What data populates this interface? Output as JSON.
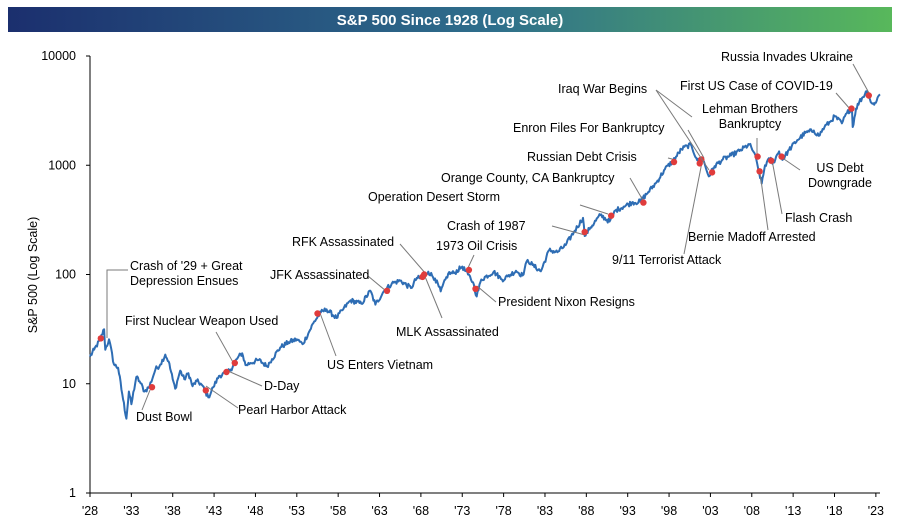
{
  "chart_data": {
    "type": "line",
    "title": "S&P 500 Since 1928 (Log Scale)",
    "ylabel": "S&P 500 (Log Scale)",
    "xlabel": "",
    "yscale": "log",
    "ylim": [
      1,
      10000
    ],
    "xlim": [
      1928,
      2023.5
    ],
    "y_ticks": [
      {
        "value": 1,
        "label": "1"
      },
      {
        "value": 10,
        "label": "10"
      },
      {
        "value": 100,
        "label": "100"
      },
      {
        "value": 1000,
        "label": "1000"
      },
      {
        "value": 10000,
        "label": "10000"
      }
    ],
    "x_ticks": [
      {
        "value": 1928,
        "label": "'28"
      },
      {
        "value": 1933,
        "label": "'33"
      },
      {
        "value": 1938,
        "label": "'38"
      },
      {
        "value": 1943,
        "label": "'43"
      },
      {
        "value": 1948,
        "label": "'48"
      },
      {
        "value": 1953,
        "label": "'53"
      },
      {
        "value": 1958,
        "label": "'58"
      },
      {
        "value": 1963,
        "label": "'63"
      },
      {
        "value": 1968,
        "label": "'68"
      },
      {
        "value": 1973,
        "label": "'73"
      },
      {
        "value": 1978,
        "label": "'78"
      },
      {
        "value": 1983,
        "label": "'83"
      },
      {
        "value": 1988,
        "label": "'88"
      },
      {
        "value": 1993,
        "label": "'93"
      },
      {
        "value": 1998,
        "label": "'98"
      },
      {
        "value": 2003,
        "label": "'03"
      },
      {
        "value": 2008,
        "label": "'08"
      },
      {
        "value": 2013,
        "label": "'13"
      },
      {
        "value": 2018,
        "label": "'18"
      },
      {
        "value": 2023,
        "label": "'23"
      }
    ],
    "series": [
      {
        "name": "S&P 500",
        "color": "#2e6db4",
        "points": [
          [
            1928.0,
            17.7
          ],
          [
            1928.5,
            20.5
          ],
          [
            1929.2,
            25
          ],
          [
            1929.7,
            31.5
          ],
          [
            1929.85,
            20.5
          ],
          [
            1930.3,
            25.5
          ],
          [
            1930.9,
            15
          ],
          [
            1931.4,
            14
          ],
          [
            1931.9,
            8
          ],
          [
            1932.4,
            4.8
          ],
          [
            1932.7,
            8.5
          ],
          [
            1933.0,
            6.5
          ],
          [
            1933.6,
            11.5
          ],
          [
            1934.0,
            10.5
          ],
          [
            1934.6,
            8.5
          ],
          [
            1935.2,
            9.5
          ],
          [
            1935.9,
            13.5
          ],
          [
            1936.5,
            15
          ],
          [
            1937.1,
            18.5
          ],
          [
            1937.5,
            16
          ],
          [
            1938.0,
            11
          ],
          [
            1938.3,
            9
          ],
          [
            1938.9,
            13.2
          ],
          [
            1939.4,
            11
          ],
          [
            1939.9,
            12.5
          ],
          [
            1940.4,
            9.5
          ],
          [
            1940.9,
            10.6
          ],
          [
            1941.5,
            9.8
          ],
          [
            1942.3,
            7.5
          ],
          [
            1942.9,
            9.3
          ],
          [
            1943.6,
            11.8
          ],
          [
            1944.4,
            12.5
          ],
          [
            1945.0,
            13.5
          ],
          [
            1945.9,
            17.5
          ],
          [
            1946.4,
            19
          ],
          [
            1946.8,
            14.8
          ],
          [
            1947.4,
            15.5
          ],
          [
            1948.4,
            16.5
          ],
          [
            1949.4,
            14.5
          ],
          [
            1950.0,
            16.8
          ],
          [
            1951.0,
            21.5
          ],
          [
            1952.0,
            24
          ],
          [
            1953.0,
            25.5
          ],
          [
            1953.7,
            23
          ],
          [
            1954.5,
            30
          ],
          [
            1955.0,
            36
          ],
          [
            1955.9,
            45
          ],
          [
            1956.6,
            48
          ],
          [
            1957.8,
            40
          ],
          [
            1958.5,
            47
          ],
          [
            1959.5,
            58
          ],
          [
            1960.8,
            54
          ],
          [
            1961.9,
            71
          ],
          [
            1962.5,
            53
          ],
          [
            1963.5,
            70
          ],
          [
            1964.5,
            83
          ],
          [
            1965.5,
            88
          ],
          [
            1966.8,
            75
          ],
          [
            1967.5,
            93
          ],
          [
            1968.0,
            92
          ],
          [
            1968.9,
            106
          ],
          [
            1969.7,
            92
          ],
          [
            1970.4,
            70
          ],
          [
            1971.3,
            102
          ],
          [
            1972.0,
            103
          ],
          [
            1973.0,
            118
          ],
          [
            1973.7,
            100
          ],
          [
            1974.3,
            85
          ],
          [
            1974.75,
            63
          ],
          [
            1975.3,
            90
          ],
          [
            1976.8,
            106
          ],
          [
            1977.8,
            90
          ],
          [
            1978.5,
            96
          ],
          [
            1979.5,
            108
          ],
          [
            1980.3,
            98
          ],
          [
            1980.9,
            136
          ],
          [
            1981.5,
            122
          ],
          [
            1982.5,
            107
          ],
          [
            1983.5,
            167
          ],
          [
            1984.5,
            160
          ],
          [
            1985.5,
            186
          ],
          [
            1986.5,
            245
          ],
          [
            1987.6,
            330
          ],
          [
            1987.8,
            225
          ],
          [
            1988.5,
            270
          ],
          [
            1989.7,
            350
          ],
          [
            1990.8,
            305
          ],
          [
            1991.5,
            385
          ],
          [
            1992.5,
            418
          ],
          [
            1993.5,
            455
          ],
          [
            1994.5,
            465
          ],
          [
            1995.5,
            570
          ],
          [
            1996.5,
            700
          ],
          [
            1997.5,
            920
          ],
          [
            1998.5,
            1100
          ],
          [
            1999.5,
            1400
          ],
          [
            2000.2,
            1500
          ],
          [
            2000.7,
            1520
          ],
          [
            2001.3,
            1160
          ],
          [
            2001.7,
            1040
          ],
          [
            2002.1,
            1130
          ],
          [
            2002.8,
            790
          ],
          [
            2003.5,
            980
          ],
          [
            2004.5,
            1130
          ],
          [
            2005.5,
            1230
          ],
          [
            2006.5,
            1350
          ],
          [
            2007.7,
            1550
          ],
          [
            2008.3,
            1300
          ],
          [
            2008.9,
            850
          ],
          [
            2009.2,
            680
          ],
          [
            2009.6,
            1000
          ],
          [
            2010.3,
            1170
          ],
          [
            2010.5,
            1030
          ],
          [
            2011.3,
            1340
          ],
          [
            2011.7,
            1120
          ],
          [
            2012.5,
            1380
          ],
          [
            2013.5,
            1700
          ],
          [
            2014.5,
            1980
          ],
          [
            2015.5,
            2080
          ],
          [
            2016.1,
            1860
          ],
          [
            2016.8,
            2250
          ],
          [
            2017.5,
            2500
          ],
          [
            2018.0,
            2800
          ],
          [
            2018.9,
            2420
          ],
          [
            2019.5,
            3000
          ],
          [
            2020.1,
            3380
          ],
          [
            2020.2,
            2240
          ],
          [
            2020.6,
            3300
          ],
          [
            2021.0,
            3800
          ],
          [
            2021.9,
            4760
          ],
          [
            2022.5,
            3700
          ],
          [
            2022.8,
            3580
          ],
          [
            2023.2,
            4150
          ],
          [
            2023.5,
            4450
          ]
        ]
      }
    ],
    "events": [
      {
        "label": "Crash of '29 + Great\nDepression Ensues",
        "x": 1929.3,
        "y": 26
      },
      {
        "label": "Dust Bowl",
        "x": 1935.5,
        "y": 9.3
      },
      {
        "label": "Pearl Harbor Attack",
        "x": 1942.0,
        "y": 8.7
      },
      {
        "label": "D-Day",
        "x": 1944.5,
        "y": 12.8
      },
      {
        "label": "First Nuclear Weapon Used",
        "x": 1945.5,
        "y": 15.5
      },
      {
        "label": "US Enters Vietnam",
        "x": 1955.5,
        "y": 44
      },
      {
        "label": "JFK Assassinated",
        "x": 1963.9,
        "y": 71
      },
      {
        "label": "RFK Assassinated",
        "x": 1968.4,
        "y": 100
      },
      {
        "label": "MLK Assassinated",
        "x": 1968.2,
        "y": 95
      },
      {
        "label": "1973 Oil Crisis",
        "x": 1973.8,
        "y": 110
      },
      {
        "label": "President Nixon Resigns",
        "x": 1974.6,
        "y": 74
      },
      {
        "label": "Crash of 1987",
        "x": 1987.8,
        "y": 245
      },
      {
        "label": "Operation Desert Storm",
        "x": 1991.0,
        "y": 345
      },
      {
        "label": "Orange County, CA Bankruptcy",
        "x": 1994.9,
        "y": 455
      },
      {
        "label": "Russian Debt Crisis",
        "x": 1998.6,
        "y": 1070
      },
      {
        "label": "Enron Files For Bankruptcy",
        "x": 2001.9,
        "y": 1130
      },
      {
        "label": "9/11 Terrorist Attack",
        "x": 2001.7,
        "y": 1040
      },
      {
        "label": "Iraq War Begins",
        "x": 2003.2,
        "y": 860
      },
      {
        "label": "Lehman Brothers\nBankruptcy",
        "x": 2008.7,
        "y": 1200
      },
      {
        "label": "Bernie Madoff Arrested",
        "x": 2008.95,
        "y": 880
      },
      {
        "label": "Flash Crash",
        "x": 2010.35,
        "y": 1100
      },
      {
        "label": "US Debt\nDowngrade",
        "x": 2011.6,
        "y": 1200
      },
      {
        "label": "First US Case of COVID-19",
        "x": 2020.05,
        "y": 3300
      },
      {
        "label": "Russia Invades Ukraine",
        "x": 2022.15,
        "y": 4350
      }
    ],
    "colors": {
      "line": "#2e6db4",
      "event_marker": "#e03c3c",
      "title_bar_left": "#1b2f6e",
      "title_bar_right": "#58b85b"
    }
  }
}
